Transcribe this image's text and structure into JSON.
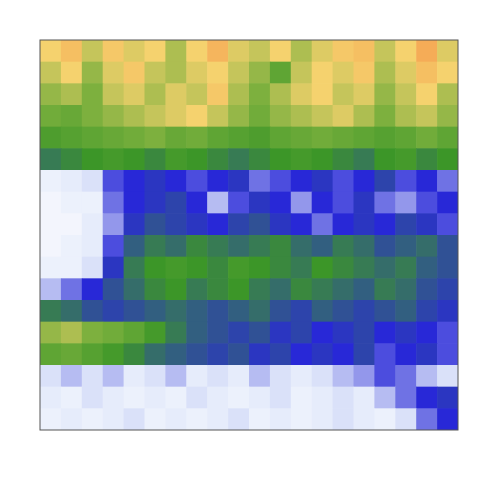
{
  "chart_data": {
    "type": "heatmap",
    "tick_labels": false,
    "zlim": [
      0,
      4
    ],
    "cells": [
      [
        3.0,
        3.2,
        2.8,
        3.1,
        2.9,
        3.0,
        2.7,
        3.0,
        3.3,
        2.9,
        2.8,
        3.0,
        2.7,
        2.9,
        3.1,
        3.2,
        2.8,
        3.0,
        3.4,
        2.9
      ],
      [
        2.8,
        3.0,
        2.6,
        2.9,
        3.1,
        2.8,
        2.7,
        2.9,
        3.0,
        2.8,
        2.6,
        2.2,
        2.8,
        3.0,
        2.9,
        3.1,
        2.7,
        2.9,
        3.2,
        3.0
      ],
      [
        2.6,
        2.7,
        2.5,
        2.8,
        2.9,
        2.7,
        2.9,
        2.8,
        3.1,
        2.7,
        2.5,
        2.7,
        2.9,
        3.0,
        2.8,
        2.9,
        2.6,
        2.8,
        3.0,
        2.7
      ],
      [
        2.4,
        2.3,
        2.5,
        2.6,
        2.7,
        2.8,
        2.9,
        3.0,
        2.8,
        2.6,
        2.4,
        2.6,
        2.7,
        2.8,
        2.9,
        2.7,
        2.5,
        2.7,
        2.8,
        2.6
      ],
      [
        2.0,
        2.1,
        2.2,
        2.3,
        2.4,
        2.5,
        2.3,
        2.4,
        2.2,
        2.1,
        2.0,
        2.2,
        2.3,
        2.4,
        2.3,
        2.2,
        2.1,
        2.2,
        2.4,
        2.2
      ],
      [
        1.6,
        1.7,
        1.8,
        1.9,
        1.8,
        1.7,
        1.9,
        1.8,
        1.7,
        1.6,
        1.7,
        1.8,
        1.9,
        1.8,
        1.7,
        1.6,
        1.8,
        1.9,
        1.7,
        1.8
      ],
      [
        0.3,
        0.4,
        0.5,
        0.9,
        1.0,
        1.1,
        1.0,
        0.9,
        1.0,
        1.1,
        0.8,
        0.9,
        1.0,
        1.1,
        0.9,
        1.0,
        1.2,
        0.9,
        1.0,
        0.8
      ],
      [
        0.2,
        0.3,
        0.3,
        0.8,
        1.0,
        1.1,
        1.2,
        1.0,
        0.6,
        0.9,
        1.1,
        1.0,
        0.7,
        1.0,
        0.9,
        1.1,
        0.8,
        0.7,
        0.9,
        1.0
      ],
      [
        0.2,
        0.2,
        0.4,
        0.7,
        1.1,
        1.3,
        1.2,
        1.1,
        1.0,
        1.2,
        1.3,
        1.1,
        1.0,
        0.8,
        1.0,
        1.1,
        1.0,
        1.2,
        1.1,
        0.9
      ],
      [
        0.2,
        0.3,
        0.4,
        0.9,
        1.4,
        1.6,
        1.5,
        1.7,
        1.6,
        1.5,
        1.6,
        1.7,
        1.5,
        1.4,
        1.6,
        1.5,
        1.3,
        1.4,
        1.5,
        1.3
      ],
      [
        0.3,
        0.3,
        0.5,
        1.1,
        1.6,
        1.8,
        1.9,
        1.8,
        1.7,
        1.9,
        1.8,
        1.7,
        1.6,
        1.8,
        1.7,
        1.6,
        1.5,
        1.6,
        1.4,
        1.3
      ],
      [
        0.6,
        0.8,
        1.0,
        1.3,
        1.5,
        1.7,
        1.8,
        1.6,
        1.7,
        1.8,
        1.6,
        1.5,
        1.7,
        1.6,
        1.5,
        1.4,
        1.6,
        1.5,
        1.3,
        1.2
      ],
      [
        1.6,
        1.5,
        1.3,
        1.2,
        1.3,
        1.4,
        1.5,
        1.4,
        1.3,
        1.4,
        1.5,
        1.3,
        1.2,
        1.4,
        1.3,
        1.2,
        1.3,
        1.4,
        1.2,
        1.1
      ],
      [
        2.6,
        2.7,
        2.5,
        2.4,
        2.2,
        1.9,
        1.6,
        1.4,
        1.3,
        1.2,
        1.3,
        1.1,
        1.2,
        1.0,
        1.1,
        1.2,
        1.0,
        1.1,
        1.0,
        0.9
      ],
      [
        2.2,
        2.3,
        2.1,
        1.9,
        1.7,
        1.5,
        1.4,
        1.3,
        1.2,
        1.3,
        1.1,
        1.2,
        1.0,
        1.1,
        1.0,
        1.2,
        0.9,
        1.0,
        1.1,
        0.9
      ],
      [
        0.5,
        0.6,
        0.5,
        0.6,
        0.4,
        0.5,
        0.6,
        0.4,
        0.5,
        0.4,
        0.6,
        0.5,
        0.4,
        0.5,
        0.6,
        0.7,
        0.9,
        0.8,
        0.6,
        0.5
      ],
      [
        0.4,
        0.3,
        0.5,
        0.4,
        0.3,
        0.4,
        0.3,
        0.5,
        0.4,
        0.3,
        0.4,
        0.5,
        0.3,
        0.4,
        0.5,
        0.4,
        0.6,
        0.8,
        1.0,
        1.1
      ],
      [
        0.3,
        0.4,
        0.3,
        0.4,
        0.5,
        0.3,
        0.4,
        0.3,
        0.4,
        0.5,
        0.3,
        0.4,
        0.3,
        0.4,
        0.5,
        0.4,
        0.3,
        0.5,
        0.8,
        1.0
      ]
    ]
  }
}
